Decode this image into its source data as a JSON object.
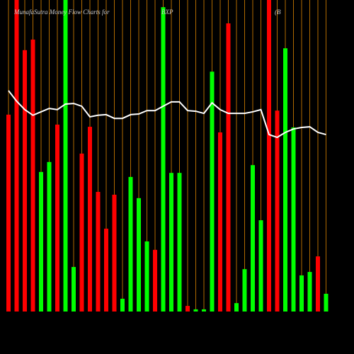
{
  "chart_data": {
    "type": "bar",
    "title": "MunafaSutra  Money Flow  Charts for",
    "subtitle": "BXP",
    "annotation": "(B",
    "values": [
      63.2,
      100,
      83.9,
      87.3,
      44.8,
      48.0,
      60.0,
      100,
      14.3,
      50.7,
      59.3,
      38.4,
      26.6,
      37.5,
      4.1,
      43.2,
      36.4,
      22.5,
      19.8,
      97.7,
      44.5,
      44.5,
      1.8,
      0.7,
      0.7,
      77.0,
      57.5,
      92.5,
      2.7,
      13.6,
      47.0,
      29.3,
      100,
      64.5,
      84.5,
      59.1,
      11.6,
      12.7,
      17.7,
      5.7
    ],
    "colors": [
      "#ff0000",
      "#ff0000",
      "#ff0000",
      "#ff0000",
      "#00ff00",
      "#00ff00",
      "#ff0000",
      "#00ff00",
      "#00ff00",
      "#ff0000",
      "#ff0000",
      "#ff0000",
      "#ff0000",
      "#ff0000",
      "#00ff00",
      "#00ff00",
      "#00ff00",
      "#00ff00",
      "#ff0000",
      "#00ff00",
      "#00ff00",
      "#00ff00",
      "#ff0000",
      "#00ff00",
      "#00ff00",
      "#00ff00",
      "#ff0000",
      "#ff0000",
      "#00ff00",
      "#00ff00",
      "#00ff00",
      "#00ff00",
      "#ff0000",
      "#ff0000",
      "#00ff00",
      "#00ff00",
      "#00ff00",
      "#00ff00",
      "#ff0000",
      "#00ff00"
    ],
    "line": {
      "color": "#ffffff",
      "values": [
        70.9,
        67.5,
        64.8,
        63.0,
        64.1,
        65.2,
        64.8,
        66.6,
        66.8,
        65.9,
        62.5,
        63.0,
        63.2,
        62.0,
        62.0,
        63.2,
        63.4,
        64.5,
        64.5,
        65.9,
        67.3,
        67.3,
        64.5,
        64.3,
        63.6,
        67.0,
        64.8,
        63.6,
        63.6,
        63.6,
        64.1,
        64.8,
        56.8,
        55.9,
        57.5,
        58.6,
        59.1,
        59.3,
        57.5,
        56.8
      ]
    },
    "ylim": [
      0,
      100
    ],
    "guide_color": "#b06a00"
  }
}
